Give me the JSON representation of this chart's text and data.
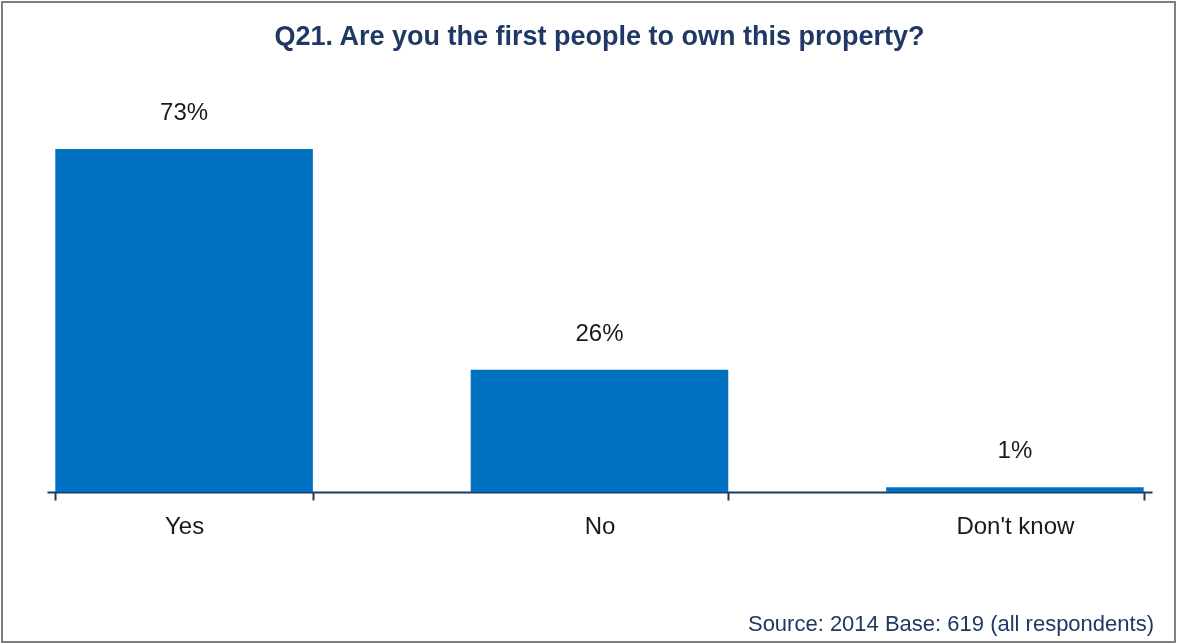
{
  "chart_data": {
    "type": "bar",
    "title": "Q21.  Are you the first people to own this property?",
    "categories": [
      "Yes",
      "No",
      "Don't know"
    ],
    "values": [
      73,
      26,
      1
    ],
    "value_labels": [
      "73%",
      "26%",
      "1%"
    ],
    "color": "#0070c0",
    "annotations": [
      "Source: 2014   Base: 619 (all respondents)"
    ]
  }
}
